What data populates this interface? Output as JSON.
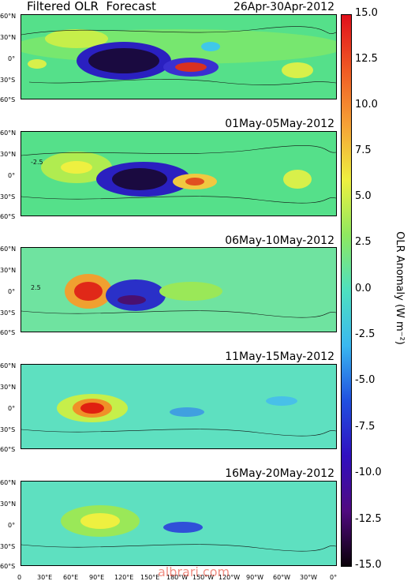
{
  "title": "Filtered OLR  Forecast",
  "panels": [
    {
      "date": "26Apr-30Apr-2012"
    },
    {
      "date": "01May-05May-2012"
    },
    {
      "date": "06May-10May-2012"
    },
    {
      "date": "11May-15May-2012"
    },
    {
      "date": "16May-20May-2012"
    }
  ],
  "lat_labels": [
    "60°N",
    "30°N",
    "0°",
    "30°S",
    "60°S"
  ],
  "lon_labels": [
    "0",
    "30°E",
    "60°E",
    "90°E",
    "120°E",
    "150°E",
    "180°W",
    "150°W",
    "120°W",
    "90°W",
    "60°W",
    "30°W",
    "0°"
  ],
  "contour_labels": {
    "p1": "-2.5",
    "p2": "2.5"
  },
  "colorbar": {
    "label": "OLR Anomaly (W m⁻²)",
    "ticks": [
      "15.0",
      "12.5",
      "10.0",
      "7.5",
      "5.0",
      "2.5",
      "0.0",
      "-2.5",
      "-5.0",
      "-7.5",
      "-10.0",
      "-12.5",
      "-15.0"
    ]
  },
  "watermark": "albrari.com"
}
